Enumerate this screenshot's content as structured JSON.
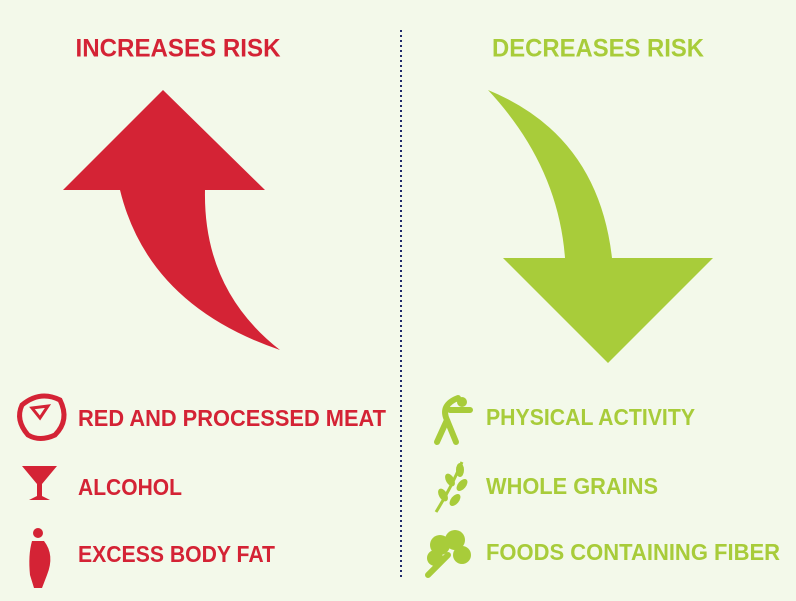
{
  "increases": {
    "title": "INCREASES RISK",
    "items": [
      "RED AND PROCESSED MEAT",
      "ALCOHOL",
      "EXCESS BODY FAT"
    ]
  },
  "decreases": {
    "title": "DECREASES RISK",
    "items": [
      "PHYSICAL ACTIVITY",
      "WHOLE GRAINS",
      "FOODS CONTAINING FIBER"
    ]
  }
}
